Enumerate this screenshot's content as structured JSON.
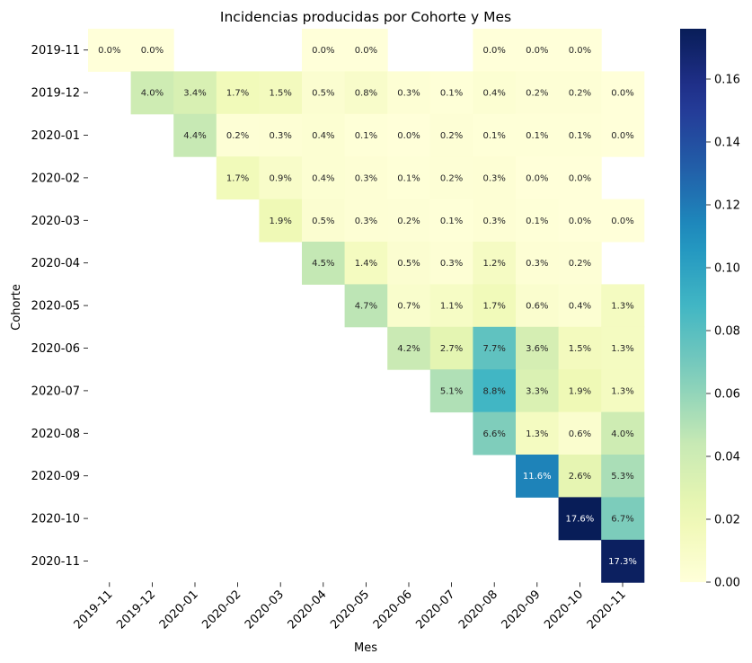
{
  "chart_data": {
    "type": "heatmap",
    "title": "Incidencias producidas por Cohorte y Mes",
    "xlabel": "Mes",
    "ylabel": "Cohorte",
    "x_categories": [
      "2019-11",
      "2019-12",
      "2020-01",
      "2020-02",
      "2020-03",
      "2020-04",
      "2020-05",
      "2020-06",
      "2020-07",
      "2020-08",
      "2020-09",
      "2020-10",
      "2020-11"
    ],
    "y_categories": [
      "2019-11",
      "2019-12",
      "2020-01",
      "2020-02",
      "2020-03",
      "2020-04",
      "2020-05",
      "2020-06",
      "2020-07",
      "2020-08",
      "2020-09",
      "2020-10",
      "2020-11"
    ],
    "values": [
      [
        0.0,
        0.0,
        null,
        null,
        null,
        0.0,
        0.0,
        null,
        null,
        0.0,
        0.0,
        0.0,
        null
      ],
      [
        null,
        0.04,
        0.034,
        0.017,
        0.015,
        0.005,
        0.008,
        0.003,
        0.001,
        0.004,
        0.002,
        0.002,
        0.0
      ],
      [
        null,
        null,
        0.044,
        0.002,
        0.003,
        0.004,
        0.001,
        0.0,
        0.002,
        0.001,
        0.001,
        0.001,
        0.0
      ],
      [
        null,
        null,
        null,
        0.017,
        0.009,
        0.004,
        0.003,
        0.001,
        0.002,
        0.003,
        0.0,
        0.0,
        null
      ],
      [
        null,
        null,
        null,
        null,
        0.019,
        0.005,
        0.003,
        0.002,
        0.001,
        0.003,
        0.001,
        0.0,
        0.0
      ],
      [
        null,
        null,
        null,
        null,
        null,
        0.045,
        0.014,
        0.005,
        0.003,
        0.012,
        0.003,
        0.002,
        null
      ],
      [
        null,
        null,
        null,
        null,
        null,
        null,
        0.047,
        0.007,
        0.011,
        0.017,
        0.006,
        0.004,
        0.013
      ],
      [
        null,
        null,
        null,
        null,
        null,
        null,
        null,
        0.042,
        0.027,
        0.077,
        0.036,
        0.015,
        0.013
      ],
      [
        null,
        null,
        null,
        null,
        null,
        null,
        null,
        null,
        0.051,
        0.088,
        0.033,
        0.019,
        0.013
      ],
      [
        null,
        null,
        null,
        null,
        null,
        null,
        null,
        null,
        null,
        0.066,
        0.013,
        0.006,
        0.04
      ],
      [
        null,
        null,
        null,
        null,
        null,
        null,
        null,
        null,
        null,
        null,
        0.116,
        0.026,
        0.053
      ],
      [
        null,
        null,
        null,
        null,
        null,
        null,
        null,
        null,
        null,
        null,
        null,
        0.176,
        0.067
      ],
      [
        null,
        null,
        null,
        null,
        null,
        null,
        null,
        null,
        null,
        null,
        null,
        null,
        0.173
      ]
    ],
    "value_format": "percent_1dp",
    "colormap": "YlGnBu",
    "vmin": 0.0,
    "vmax": 0.176,
    "colorbar_ticks": [
      "0.00",
      "0.02",
      "0.04",
      "0.06",
      "0.08",
      "0.10",
      "0.12",
      "0.14",
      "0.16"
    ],
    "colorbar_tick_values": [
      0.0,
      0.02,
      0.04,
      0.06,
      0.08,
      0.1,
      0.12,
      0.14,
      0.16
    ],
    "grid": false,
    "x_tick_rotation": 45
  }
}
